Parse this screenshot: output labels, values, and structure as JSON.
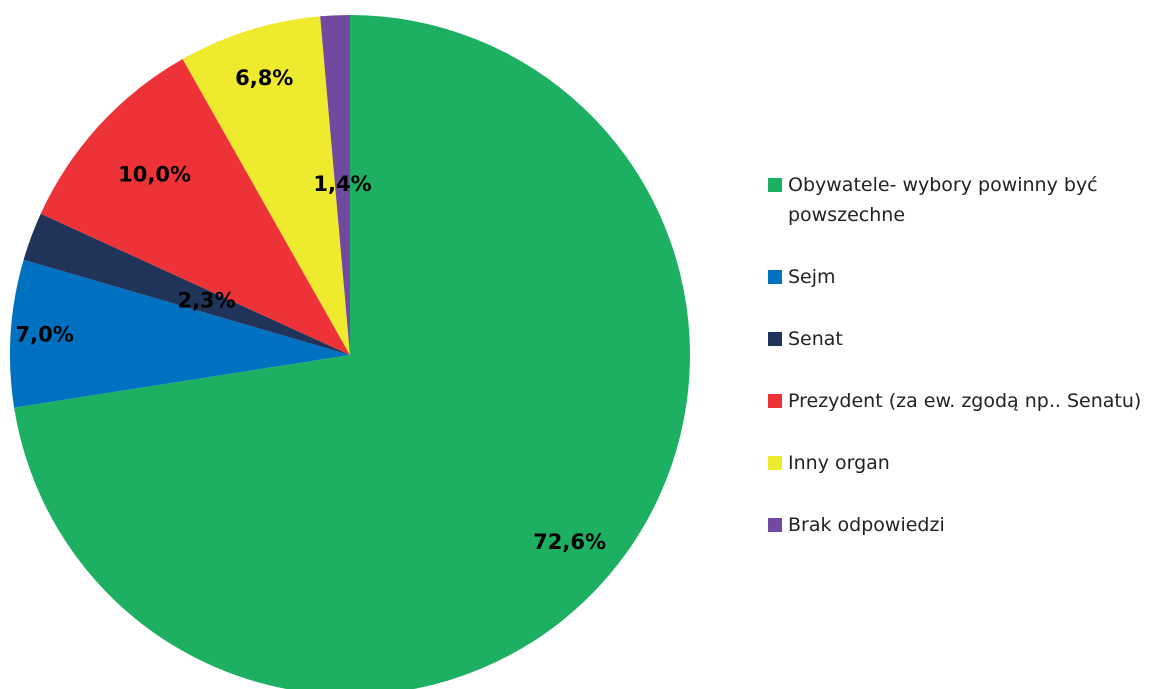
{
  "chart_data": {
    "type": "pie",
    "categories": [
      "Obywatele- wybory powinny być powszechne",
      "Sejm",
      "Senat",
      "Prezydent (za ew. zgodą np.. Senatu)",
      "Inny organ",
      "Brak odpowiedzi"
    ],
    "values": [
      72.6,
      7.0,
      2.3,
      10.0,
      6.8,
      1.4
    ],
    "value_labels": [
      "72,6%",
      "7,0%",
      "2,3%",
      "10,0%",
      "6,8%",
      "1,4%"
    ],
    "colors": [
      "#1daf62",
      "#0070c0",
      "#1f3458",
      "#ee3338",
      "#eeea2e",
      "#7149a0"
    ],
    "legend": "right"
  }
}
